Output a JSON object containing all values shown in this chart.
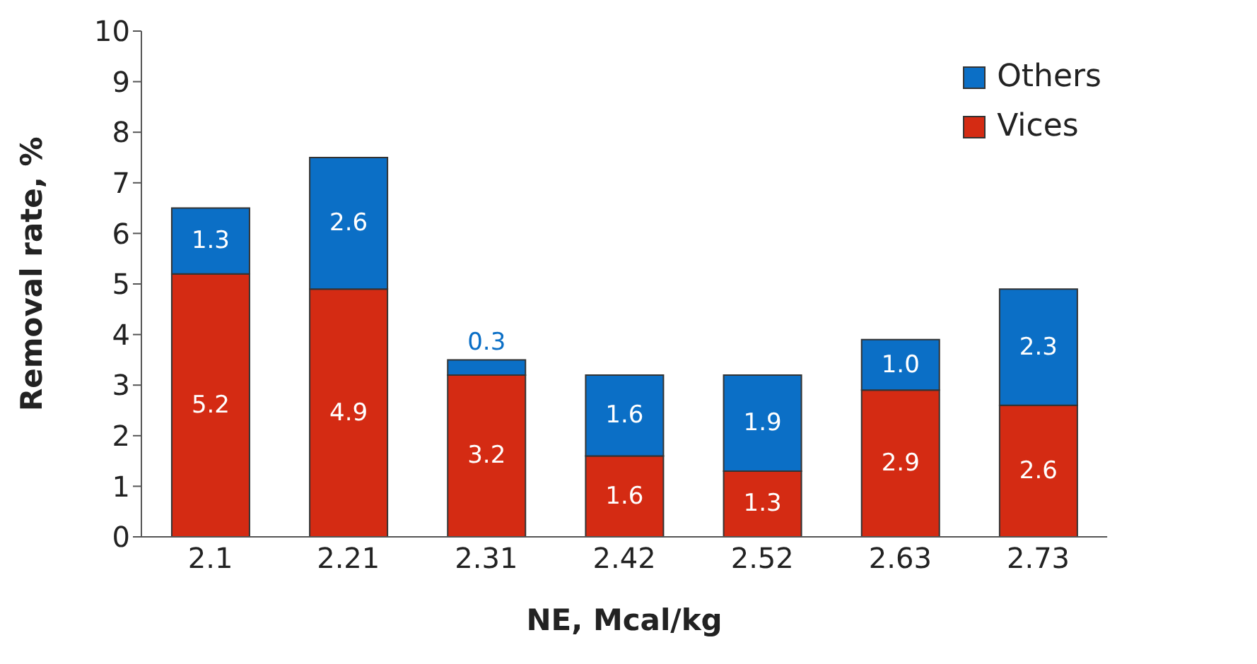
{
  "chart_data": {
    "type": "bar",
    "stacked": true,
    "xlabel": "NE, Mcal/kg",
    "ylabel": "Removal rate, %",
    "categories": [
      "2.1",
      "2.21",
      "2.31",
      "2.42",
      "2.52",
      "2.63",
      "2.73"
    ],
    "series": [
      {
        "name": "Vices",
        "color": "#d42b13",
        "values": [
          5.2,
          4.9,
          3.2,
          1.6,
          1.3,
          2.9,
          2.6
        ],
        "value_labels": [
          "5.2",
          "4.9",
          "3.2",
          "1.6",
          "1.3",
          "2.9",
          "2.6"
        ]
      },
      {
        "name": "Others",
        "color": "#0b6fc6",
        "values": [
          1.3,
          2.6,
          0.3,
          1.6,
          1.9,
          1.0,
          2.3
        ],
        "value_labels": [
          "1.3",
          "2.6",
          "0.3",
          "1.6",
          "1.9",
          "1.0",
          "2.3"
        ]
      }
    ],
    "ylim": [
      0,
      10
    ],
    "yticks": [
      0,
      1,
      2,
      3,
      4,
      5,
      6,
      7,
      8,
      9,
      10
    ],
    "legend": "top right",
    "grid": false
  }
}
